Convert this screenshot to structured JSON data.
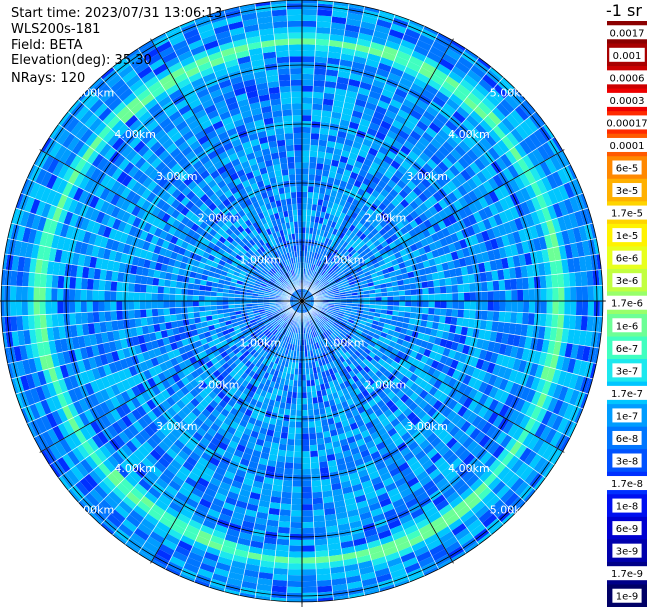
{
  "header": {
    "start_time": "Start time: 2023/07/31 13:06:13",
    "instrument": "WLS200s-181",
    "field": "Field: BETA",
    "elevation": "Elevation(deg): 35.30",
    "nrays": "NRays: 120"
  },
  "chart_data": {
    "type": "heatmap",
    "projection": "polar-ppi",
    "field": "BETA",
    "elevation_deg": 35.3,
    "n_rays": 120,
    "range_rings_km": [
      1,
      2,
      3,
      4,
      5
    ],
    "ring_labels": [
      "1.00km",
      "2.00km",
      "3.00km",
      "4.00km",
      "5.00km"
    ],
    "max_range_km": 5.1,
    "spokes_deg": [
      0,
      30,
      60,
      90,
      120,
      150,
      180,
      210,
      240,
      270,
      300,
      330
    ],
    "dominant_feature": {
      "description": "aerosol layer ring with elevated BETA",
      "range_km": 4.4,
      "peak_value": "1e-6"
    },
    "colorbar": {
      "unit_label": "-1 sr",
      "placement": "right",
      "labels": [
        "0.0017",
        "0.001",
        "0.0006",
        "0.0003",
        "0.00017",
        "0.0001",
        "6e-5",
        "3e-5",
        "1.7e-5",
        "1e-5",
        "6e-6",
        "3e-6",
        "1.7e-6",
        "1e-6",
        "6e-7",
        "3e-7",
        "1.7e-7",
        "1e-7",
        "6e-8",
        "3e-8",
        "1.7e-8",
        "1e-8",
        "6e-9",
        "3e-9",
        "1.7e-9",
        "1e-9"
      ],
      "colors": [
        "#8b0000",
        "#a80000",
        "#cc0000",
        "#ee0000",
        "#ff2a00",
        "#ff5a00",
        "#ff8800",
        "#ffb000",
        "#ffd400",
        "#fff200",
        "#e8ff1e",
        "#c2ff40",
        "#98ff6a",
        "#6cff96",
        "#40ffc0",
        "#1ce8ee",
        "#00c6ff",
        "#009cff",
        "#0076ff",
        "#0052ff",
        "#0030ff",
        "#0010f0",
        "#0000d0",
        "#0000ac",
        "#000088",
        "#000066"
      ]
    }
  }
}
